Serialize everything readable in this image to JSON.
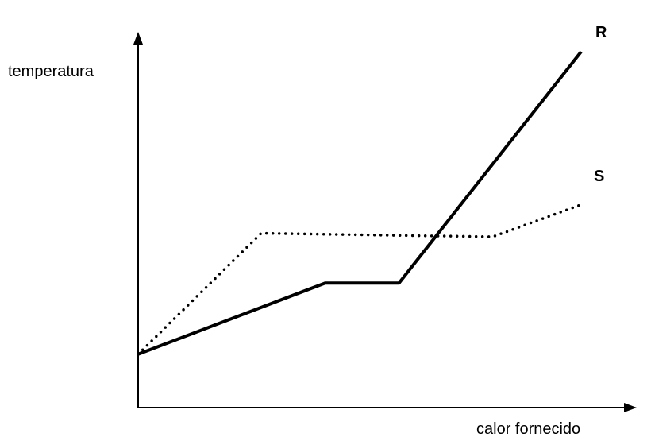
{
  "chart_data": {
    "type": "line",
    "title": "",
    "xlabel": "calor fornecido",
    "ylabel": "temperatura",
    "grid": false,
    "ticks": false,
    "xlim": [
      0,
      100
    ],
    "ylim": [
      0,
      100
    ],
    "series": [
      {
        "name": "R",
        "style": "solid",
        "color": "#000000",
        "x": [
          0,
          38,
          53,
          90
        ],
        "y": [
          15,
          35,
          35,
          100
        ]
      },
      {
        "name": "S",
        "style": "dotted",
        "color": "#000000",
        "x": [
          0,
          25,
          72,
          90
        ],
        "y": [
          15,
          49,
          48,
          57
        ]
      }
    ]
  }
}
